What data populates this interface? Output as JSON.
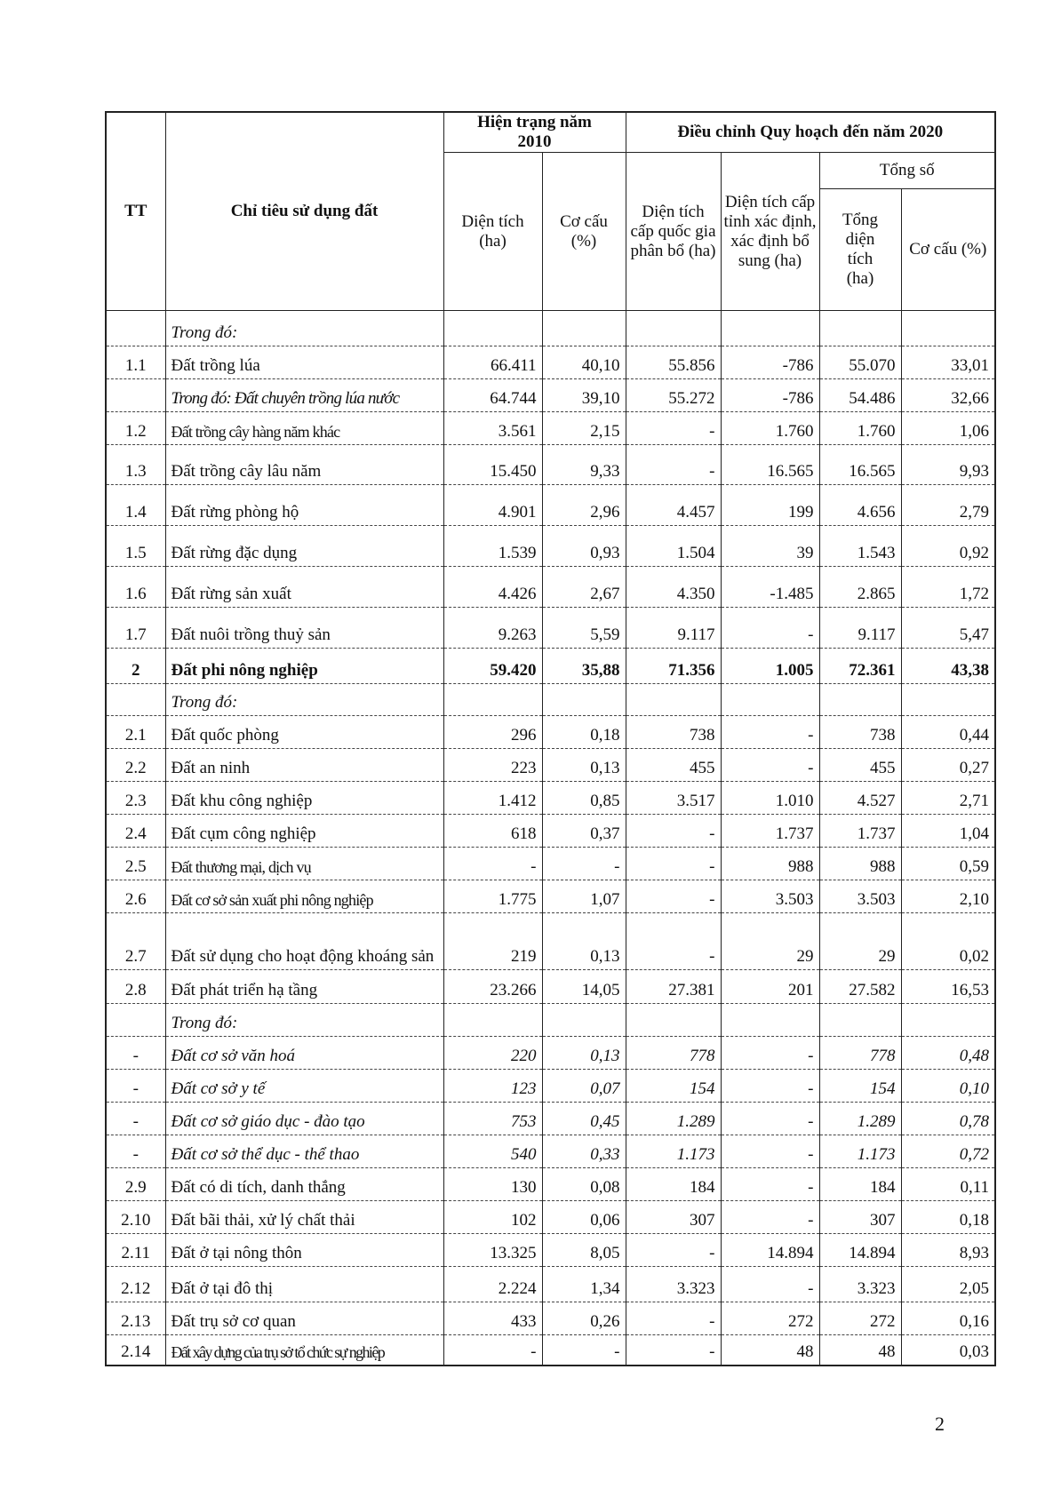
{
  "table": {
    "headers": {
      "tt": "TT",
      "indicator": "Chỉ tiêu sử dụng đất",
      "current": "Hiện trạng năm 2010",
      "current_area": "Diện tích (ha)",
      "current_share": "Cơ cấu (%)",
      "adjusted": "Điều chỉnh Quy hoạch đến năm 2020",
      "national": "Diện tích cấp quốc gia phân bổ (ha)",
      "provincial": "Diện tích cấp tỉnh xác định, xác định bổ sung (ha)",
      "total": "Tổng số",
      "total_area": "Tổng diện tích (ha)",
      "total_share": "Cơ cấu (%)"
    },
    "rows": [
      {
        "tt": "",
        "name": "Trong đó:",
        "style": "italic",
        "values": [
          "",
          "",
          "",
          "",
          "",
          ""
        ]
      },
      {
        "tt": "1.1",
        "name": "Đất trồng lúa",
        "style": "normal",
        "values": [
          "66.411",
          "40,10",
          "55.856",
          "-786",
          "55.070",
          "33,01"
        ]
      },
      {
        "tt": "",
        "name": "Trong đó: Đất chuyên trồng lúa nước",
        "style": "italic-name",
        "values": [
          "64.744",
          "39,10",
          "55.272",
          "-786",
          "54.486",
          "32,66"
        ]
      },
      {
        "tt": "1.2",
        "name": "Đất trồng cây hàng năm khác",
        "style": "narrow",
        "values": [
          "3.561",
          "2,15",
          "-",
          "1.760",
          "1.760",
          "1,06"
        ]
      },
      {
        "tt": "1.3",
        "name": "Đất trồng cây lâu năm",
        "style": "normal",
        "values": [
          "15.450",
          "9,33",
          "-",
          "16.565",
          "16.565",
          "9,93"
        ]
      },
      {
        "tt": "1.4",
        "name": "Đất rừng phòng hộ",
        "style": "normal",
        "values": [
          "4.901",
          "2,96",
          "4.457",
          "199",
          "4.656",
          "2,79"
        ]
      },
      {
        "tt": "1.5",
        "name": "Đất rừng đặc dụng",
        "style": "normal",
        "values": [
          "1.539",
          "0,93",
          "1.504",
          "39",
          "1.543",
          "0,92"
        ]
      },
      {
        "tt": "1.6",
        "name": "Đất rừng sản xuất",
        "style": "normal",
        "values": [
          "4.426",
          "2,67",
          "4.350",
          "-1.485",
          "2.865",
          "1,72"
        ]
      },
      {
        "tt": "1.7",
        "name": "Đất nuôi trồng thuỷ sản",
        "style": "normal",
        "values": [
          "9.263",
          "5,59",
          "9.117",
          "-",
          "9.117",
          "5,47"
        ]
      },
      {
        "tt": "2",
        "name": "Đất phi nông nghiệp",
        "style": "bold",
        "values": [
          "59.420",
          "35,88",
          "71.356",
          "1.005",
          "72.361",
          "43,38"
        ]
      },
      {
        "tt": "",
        "name": "Trong đó:",
        "style": "italic",
        "values": [
          "",
          "",
          "",
          "",
          "",
          ""
        ]
      },
      {
        "tt": "2.1",
        "name": "Đất quốc phòng",
        "style": "normal",
        "values": [
          "296",
          "0,18",
          "738",
          "-",
          "738",
          "0,44"
        ]
      },
      {
        "tt": "2.2",
        "name": "Đất an ninh",
        "style": "normal",
        "values": [
          "223",
          "0,13",
          "455",
          "-",
          "455",
          "0,27"
        ]
      },
      {
        "tt": "2.3",
        "name": "Đất khu công nghiệp",
        "style": "normal",
        "values": [
          "1.412",
          "0,85",
          "3.517",
          "1.010",
          "4.527",
          "2,71"
        ]
      },
      {
        "tt": "2.4",
        "name": "Đất cụm công nghiệp",
        "style": "normal",
        "values": [
          "618",
          "0,37",
          "-",
          "1.737",
          "1.737",
          "1,04"
        ]
      },
      {
        "tt": "2.5",
        "name": "Đất thương mại, dịch vụ",
        "style": "narrow",
        "values": [
          "-",
          "-",
          "-",
          "988",
          "988",
          "0,59"
        ]
      },
      {
        "tt": "2.6",
        "name": "Đất cơ sở sản xuất phi nông nghiệp",
        "style": "narrow",
        "values": [
          "1.775",
          "1,07",
          "-",
          "3.503",
          "3.503",
          "2,10"
        ]
      },
      {
        "tt": "2.7",
        "name": "Đất sử dụng cho hoạt động khoáng sản",
        "style": "normal",
        "values": [
          "219",
          "0,13",
          "-",
          "29",
          "29",
          "0,02"
        ]
      },
      {
        "tt": "2.8",
        "name": "Đất phát triển hạ tầng",
        "style": "normal",
        "values": [
          "23.266",
          "14,05",
          "27.381",
          "201",
          "27.582",
          "16,53"
        ]
      },
      {
        "tt": "",
        "name": "Trong đó:",
        "style": "italic",
        "values": [
          "",
          "",
          "",
          "",
          "",
          ""
        ]
      },
      {
        "tt": "-",
        "name": "Đất cơ sở văn hoá",
        "style": "italic",
        "values": [
          "220",
          "0,13",
          "778",
          "-",
          "778",
          "0,48"
        ]
      },
      {
        "tt": "-",
        "name": "Đất cơ sở y tế",
        "style": "italic",
        "values": [
          "123",
          "0,07",
          "154",
          "-",
          "154",
          "0,10"
        ]
      },
      {
        "tt": "-",
        "name": "Đất cơ sở giáo dục - đào tạo",
        "style": "italic",
        "values": [
          "753",
          "0,45",
          "1.289",
          "-",
          "1.289",
          "0,78"
        ]
      },
      {
        "tt": "-",
        "name": "Đất cơ sở thể dục - thể thao",
        "style": "italic",
        "values": [
          "540",
          "0,33",
          "1.173",
          "-",
          "1.173",
          "0,72"
        ]
      },
      {
        "tt": "2.9",
        "name": "Đất có di tích, danh thắng",
        "style": "normal",
        "values": [
          "130",
          "0,08",
          "184",
          "-",
          "184",
          "0,11"
        ]
      },
      {
        "tt": "2.10",
        "name": "Đất bãi thải, xử lý chất thải",
        "style": "normal",
        "values": [
          "102",
          "0,06",
          "307",
          "-",
          "307",
          "0,18"
        ]
      },
      {
        "tt": "2.11",
        "name": "Đất ở tại nông thôn",
        "style": "normal",
        "values": [
          "13.325",
          "8,05",
          "-",
          "14.894",
          "14.894",
          "8,93"
        ]
      },
      {
        "tt": "2.12",
        "name": "Đất ở tại đô thị",
        "style": "normal",
        "values": [
          "2.224",
          "1,34",
          "3.323",
          "-",
          "3.323",
          "2,05"
        ]
      },
      {
        "tt": "2.13",
        "name": "Đất trụ sở cơ quan",
        "style": "normal",
        "values": [
          "433",
          "0,26",
          "-",
          "272",
          "272",
          "0,16"
        ]
      },
      {
        "tt": "2.14",
        "name": "Đất xây dựng của trụ sở tổ chức sự nghiệp",
        "style": "narrow-tight",
        "values": [
          "-",
          "-",
          "-",
          "48",
          "48",
          "0,03"
        ]
      }
    ]
  },
  "page_number": "2"
}
